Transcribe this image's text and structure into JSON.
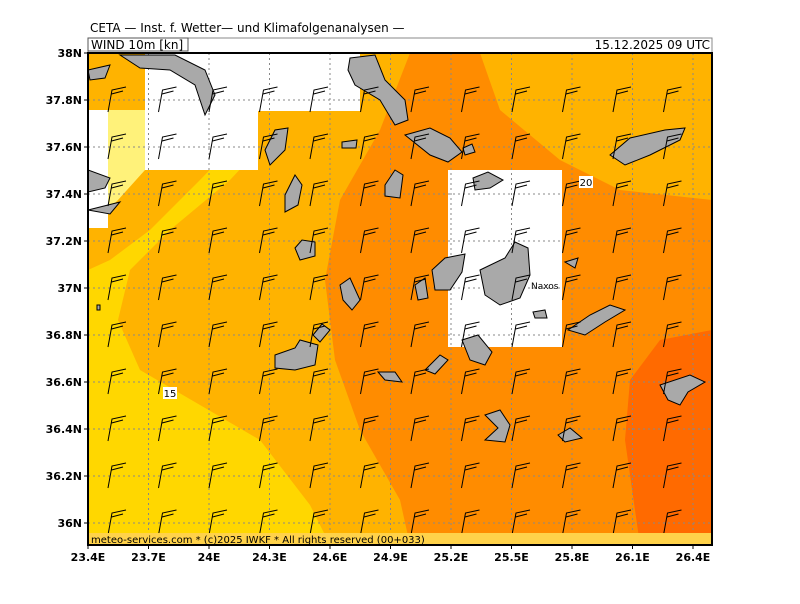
{
  "header": {
    "title": "CETA — Inst. f. Wetter— und Klimafolgenanalysen —",
    "field": "WIND 10m [kn]",
    "valid_time": "15.12.2025 09 UTC"
  },
  "map": {
    "lat_labels": [
      "38N",
      "37.8N",
      "37.6N",
      "37.4N",
      "37.2N",
      "37N",
      "36.8N",
      "36.6N",
      "36.4N",
      "36.2N",
      "36N"
    ],
    "lon_labels": [
      "23.4E",
      "23.7E",
      "24E",
      "24.3E",
      "24.6E",
      "24.9E",
      "25.2E",
      "25.5E",
      "25.8E",
      "26.1E",
      "26.4E"
    ],
    "contour_labels": [
      "15",
      "20"
    ],
    "place_labels": [
      "Naxos"
    ]
  },
  "footer": {
    "text": "meteo-services.com * (c)2025 IWKF * All rights reserved (00+033)"
  }
}
